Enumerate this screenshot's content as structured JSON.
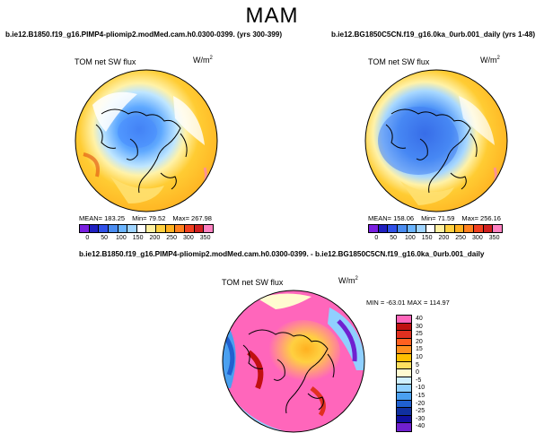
{
  "season": "MAM",
  "panels": {
    "left": {
      "case": "b.ie12.B1850.f19_g16.PIMP4-pliomip2.modMed.cam.h0.0300-0399. (yrs 300-399)",
      "variable": "TOM net SW flux",
      "unit_base": "W/m",
      "unit_exp": "2",
      "mean": "MEAN= 183.25",
      "min": "Min= 79.52",
      "max": "Max= 267.98"
    },
    "right": {
      "case": "b.ie12.BG1850C5CN.f19_g16.0ka_0urb.001_daily (yrs 1-48)",
      "variable": "TOM net SW flux",
      "unit_base": "W/m",
      "unit_exp": "2",
      "mean": "MEAN= 158.06",
      "min": "Min= 71.59",
      "max": "Max= 256.16"
    },
    "diff": {
      "case": "b.ie12.B1850.f19_g16.PIMP4-pliomip2.modMed.cam.h0.0300-0399. - b.ie12.BG1850C5CN.f19_g16.0ka_0urb.001_daily",
      "variable": "TOM net SW flux",
      "unit_base": "W/m",
      "unit_exp": "2",
      "minmax": "MIN = -63.01  MAX = 114.97"
    }
  },
  "abs_colorbar": {
    "colors": [
      "#7a1fe0",
      "#2020c0",
      "#3050e8",
      "#4a8cf0",
      "#6ab4ff",
      "#9fd4ff",
      "#ffffff",
      "#fff0a0",
      "#ffd040",
      "#ffb020",
      "#ff8020",
      "#f04020",
      "#d02020",
      "#ff80c0"
    ],
    "ticks": [
      "0",
      "50",
      "100",
      "150",
      "200",
      "250",
      "300",
      "350"
    ]
  },
  "diff_colorbar": {
    "colors": [
      "#ff66bb",
      "#c01010",
      "#e03020",
      "#ff6020",
      "#ff9020",
      "#ffc000",
      "#ffe060",
      "#fffbd0",
      "#d0f0ff",
      "#90d0ff",
      "#4aa0f0",
      "#2060d0",
      "#1030a0",
      "#1010a0",
      "#7020d0"
    ],
    "ticks": [
      "40",
      "30",
      "25",
      "20",
      "15",
      "10",
      "5",
      "0",
      "-5",
      "-10",
      "-15",
      "-20",
      "-25",
      "-30",
      "-40"
    ]
  }
}
